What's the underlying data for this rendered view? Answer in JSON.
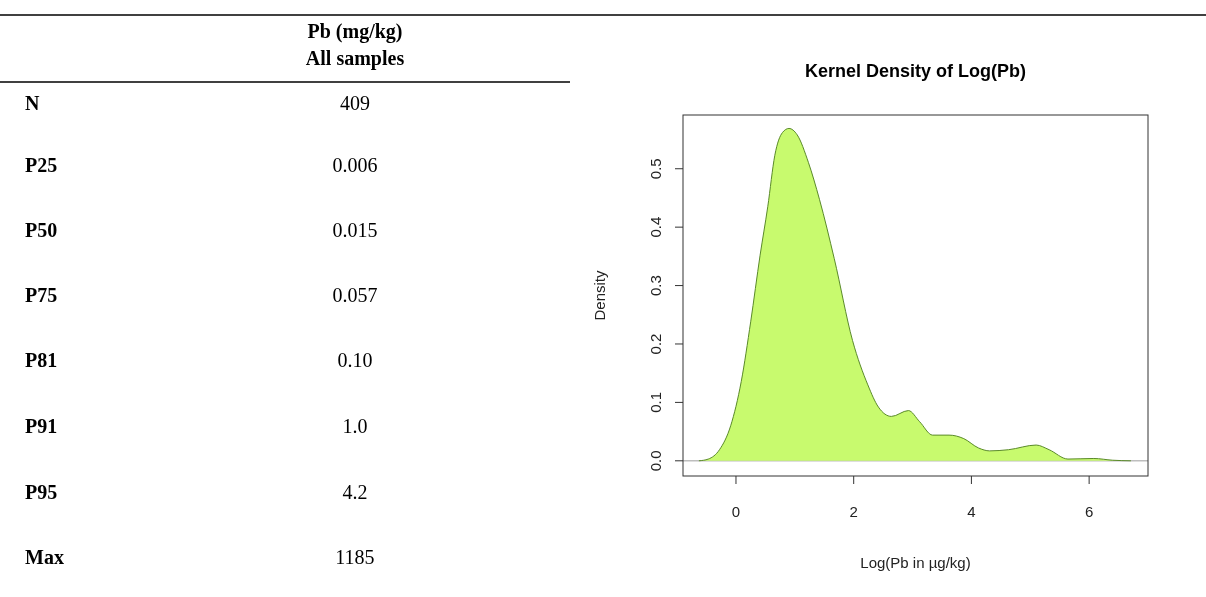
{
  "chart_data": [
    {
      "type": "other",
      "title": "Pb (mg/kg)",
      "subtitle": "All samples",
      "categories": [
        "N",
        "P25",
        "P50",
        "P75",
        "P81",
        "P91",
        "P95",
        "Max"
      ],
      "value_labels": [
        "409",
        "0.006",
        "0.015",
        "0.057",
        "0.10",
        "1.0",
        "4.2",
        "1185"
      ]
    },
    {
      "type": "area",
      "title": "Kernel Density of Log(Pb)",
      "xlabel": "Log(Pb in µg/kg)",
      "ylabel": "Density",
      "xlim": [
        -0.9,
        7.0
      ],
      "ylim": [
        -0.026,
        0.592
      ],
      "xticks": [
        0,
        2,
        4,
        6
      ],
      "yticks": [
        {
          "value": 0,
          "label": "0.0"
        },
        0.1,
        0.2,
        0.3,
        0.4,
        0.5
      ],
      "grid": false,
      "ref_lines": [
        {
          "axis": "y",
          "value": 0,
          "color": "#bebebe"
        }
      ],
      "series": [
        {
          "color": "#c8fa6e",
          "x": [
            -0.63,
            -0.47,
            -0.28,
            -0.09,
            0.09,
            0.25,
            0.41,
            0.54,
            0.66,
            0.79,
            0.9,
            1.04,
            1.23,
            1.42,
            1.67,
            1.98,
            2.24,
            2.42,
            2.64,
            2.93,
            3.12,
            3.34,
            3.62,
            3.87,
            4.12,
            4.31,
            4.63,
            5.1,
            5.32,
            5.64,
            6.08,
            6.4,
            6.71
          ],
          "values": [
            0,
            0.003,
            0.019,
            0.06,
            0.136,
            0.238,
            0.352,
            0.435,
            0.523,
            0.562,
            0.569,
            0.558,
            0.511,
            0.447,
            0.346,
            0.206,
            0.13,
            0.092,
            0.076,
            0.086,
            0.067,
            0.044,
            0.044,
            0.038,
            0.022,
            0.017,
            0.019,
            0.027,
            0.019,
            0.003,
            0.004,
            0.001,
            0
          ]
        }
      ]
    }
  ]
}
